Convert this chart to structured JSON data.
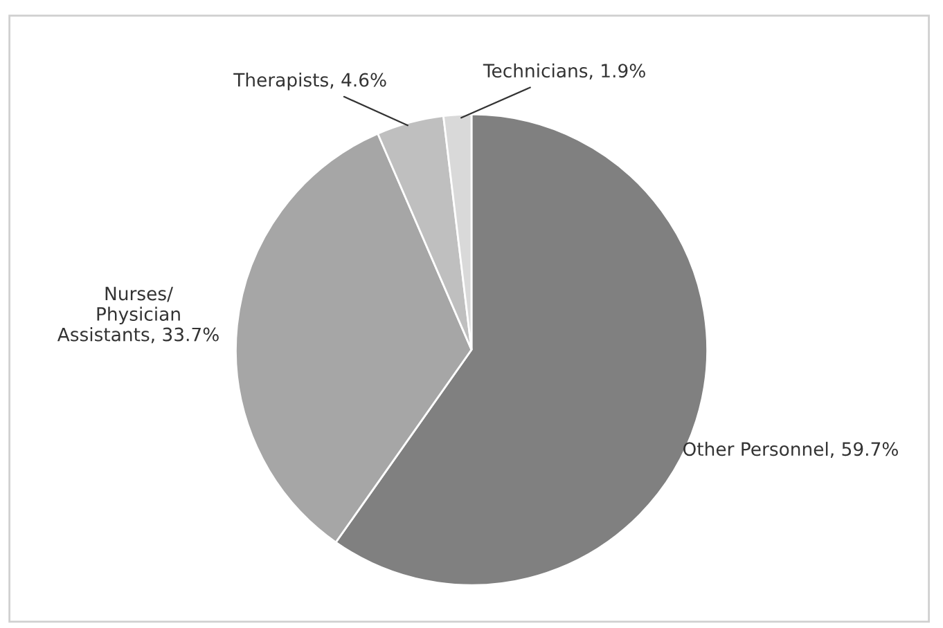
{
  "chart_data": {
    "type": "pie",
    "categories": [
      "Other Personnel",
      "Nurses/\nPhysician\nAssistants",
      "Therapists",
      "Technicians"
    ],
    "values": [
      59.7,
      33.7,
      4.6,
      1.9
    ],
    "value_labels": [
      "59.7%",
      "33.7%",
      "4.6%",
      "1.9%"
    ],
    "colors": [
      "#808080",
      "#a6a6a6",
      "#bfbfbf",
      "#d9d9d9"
    ],
    "legend": false
  }
}
